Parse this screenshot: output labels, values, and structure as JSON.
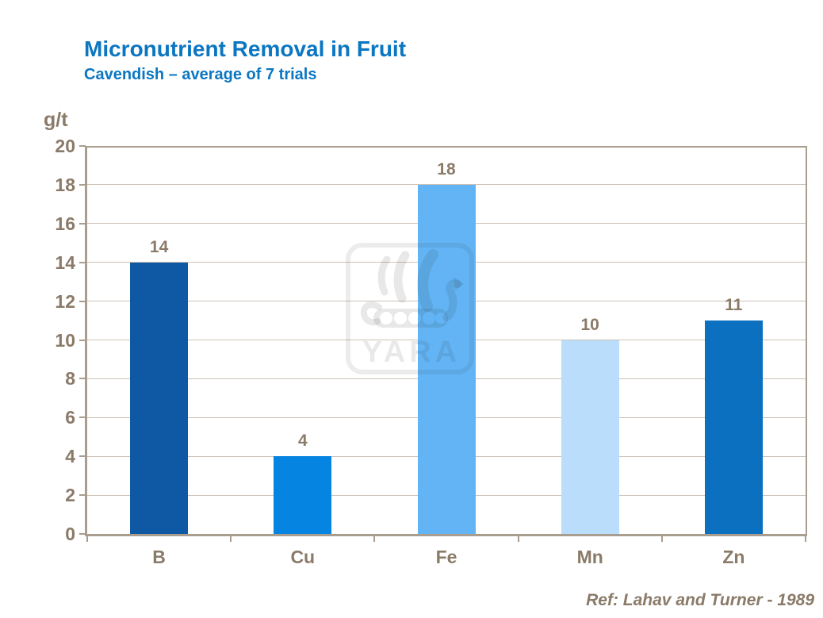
{
  "slide": {
    "title": "Micronutrient Removal in Fruit",
    "subtitle": "Cavendish – average of 7 trials",
    "reference": "Ref: Lahav and Turner - 1989",
    "watermark_text": "YARA"
  },
  "colors": {
    "title_blue": "#0B76C1",
    "text_taupe": "#8A7A68",
    "axis_line": "#A89D8E",
    "gridline": "#CCC2B6",
    "bar_colors": [
      "#0F58A3",
      "#0584E2",
      "#62B4F4",
      "#B9DDFA",
      "#0B70C0"
    ]
  },
  "chart_data": {
    "type": "bar",
    "title": "Micronutrient Removal in Fruit",
    "subtitle": "Cavendish – average of 7 trials",
    "ylabel": "g/t",
    "xlabel": "",
    "categories": [
      "B",
      "Cu",
      "Fe",
      "Mn",
      "Zn"
    ],
    "values": [
      14,
      4,
      18,
      10,
      11
    ],
    "data_labels": [
      14,
      4,
      18,
      10,
      11
    ],
    "ylim": [
      0,
      20
    ],
    "ytick_step": 2,
    "yticks": [
      0,
      2,
      4,
      6,
      8,
      10,
      12,
      14,
      16,
      18,
      20
    ],
    "grid": "horizontal",
    "legend": "none",
    "annotation": "Ref: Lahav and Turner - 1989"
  }
}
